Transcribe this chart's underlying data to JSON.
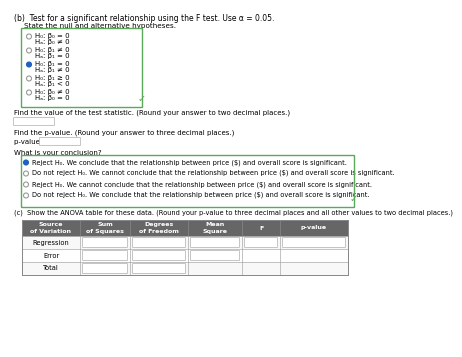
{
  "title_b": "(b)  Test for a significant relationship using the F test. Use α = 0.05.",
  "subtitle_b": "State the null and alternative hypotheses.",
  "hypotheses": [
    {
      "h0": "H₀: β₀ = 0",
      "ha": "Hₐ: β₀ ≠ 0",
      "selected": false
    },
    {
      "h0": "H₀: β₁ ≠ 0",
      "ha": "Hₐ: β₁ = 0",
      "selected": false
    },
    {
      "h0": "H₀: β₁ = 0",
      "ha": "Hₐ: β₁ ≠ 0",
      "selected": true
    },
    {
      "h0": "H₀: β₁ ≥ 0",
      "ha": "Hₐ: β₁ < 0",
      "selected": false
    },
    {
      "h0": "H₀: β₀ ≠ 0",
      "ha": "Hₐ: β₀ = 0",
      "selected": false
    }
  ],
  "test_stat_label": "Find the value of the test statistic. (Round your answer to two decimal places.)",
  "pvalue_label": "Find the p-value. (Round your answer to three decimal places.)",
  "pvalue_prefix": "p-value = ",
  "conclusion_label": "What is your conclusion?",
  "conclusions": [
    {
      "text": "Reject H₀. We conclude that the relationship between price ($) and overall score is significant.",
      "selected": true
    },
    {
      "text": "Do not reject H₀. We cannot conclude that the relationship between price ($) and overall score is significant.",
      "selected": false
    },
    {
      "text": "Reject H₀. We cannot conclude that the relationship between price ($) and overall score is significant.",
      "selected": false
    },
    {
      "text": "Do not reject H₀. We conclude that the relationship between price ($) and overall score is significant.",
      "selected": false
    }
  ],
  "title_c": "(c)  Show the ANOVA table for these data. (Round your p-value to three decimal places and all other values to two decimal places.)",
  "table_headers": [
    "Source\nof Variation",
    "Sum\nof Squares",
    "Degrees\nof Freedom",
    "Mean\nSquare",
    "F",
    "p-value"
  ],
  "table_rows": [
    "Regression",
    "Error",
    "Total"
  ],
  "bg_color": "#ffffff",
  "box_border_color": "#5aaa5a",
  "selected_radio_color": "#2060c0",
  "unselected_radio_color": "#999999",
  "input_box_border": "#bbbbbb",
  "table_header_bg": "#666666",
  "table_header_fg": "#ffffff",
  "table_border": "#aaaaaa"
}
